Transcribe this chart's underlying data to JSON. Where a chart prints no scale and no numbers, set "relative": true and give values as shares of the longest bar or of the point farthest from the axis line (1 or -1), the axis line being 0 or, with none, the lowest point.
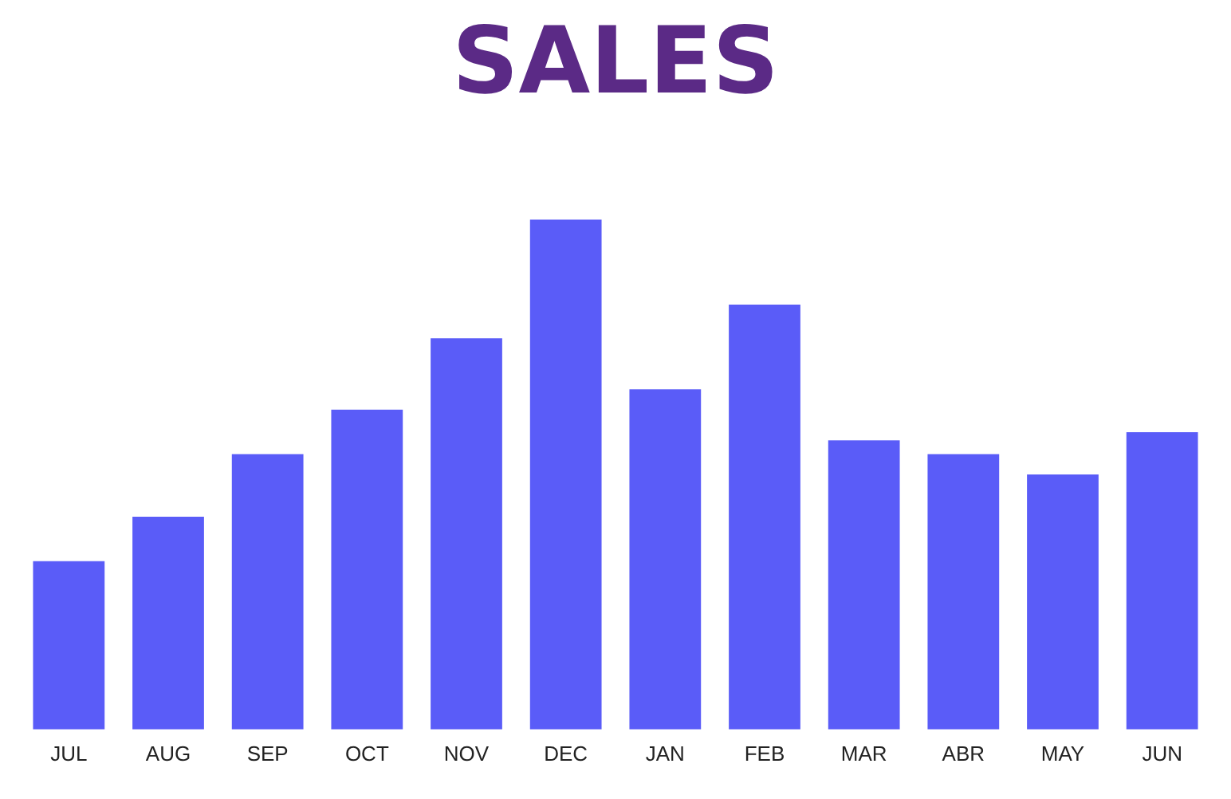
{
  "chart_data": {
    "type": "bar",
    "title": "SALES",
    "relative": true,
    "categories": [
      "JUL",
      "AUG",
      "SEP",
      "OCT",
      "NOV",
      "DEC",
      "JAN",
      "FEB",
      "MAR",
      "ABR",
      "MAY",
      "JUN"
    ],
    "values": [
      0.33,
      0.417,
      0.54,
      0.627,
      0.767,
      1,
      0.667,
      0.833,
      0.567,
      0.54,
      0.5,
      0.583
    ],
    "color": "#5a5cf8",
    "grid": false,
    "legend": false
  }
}
